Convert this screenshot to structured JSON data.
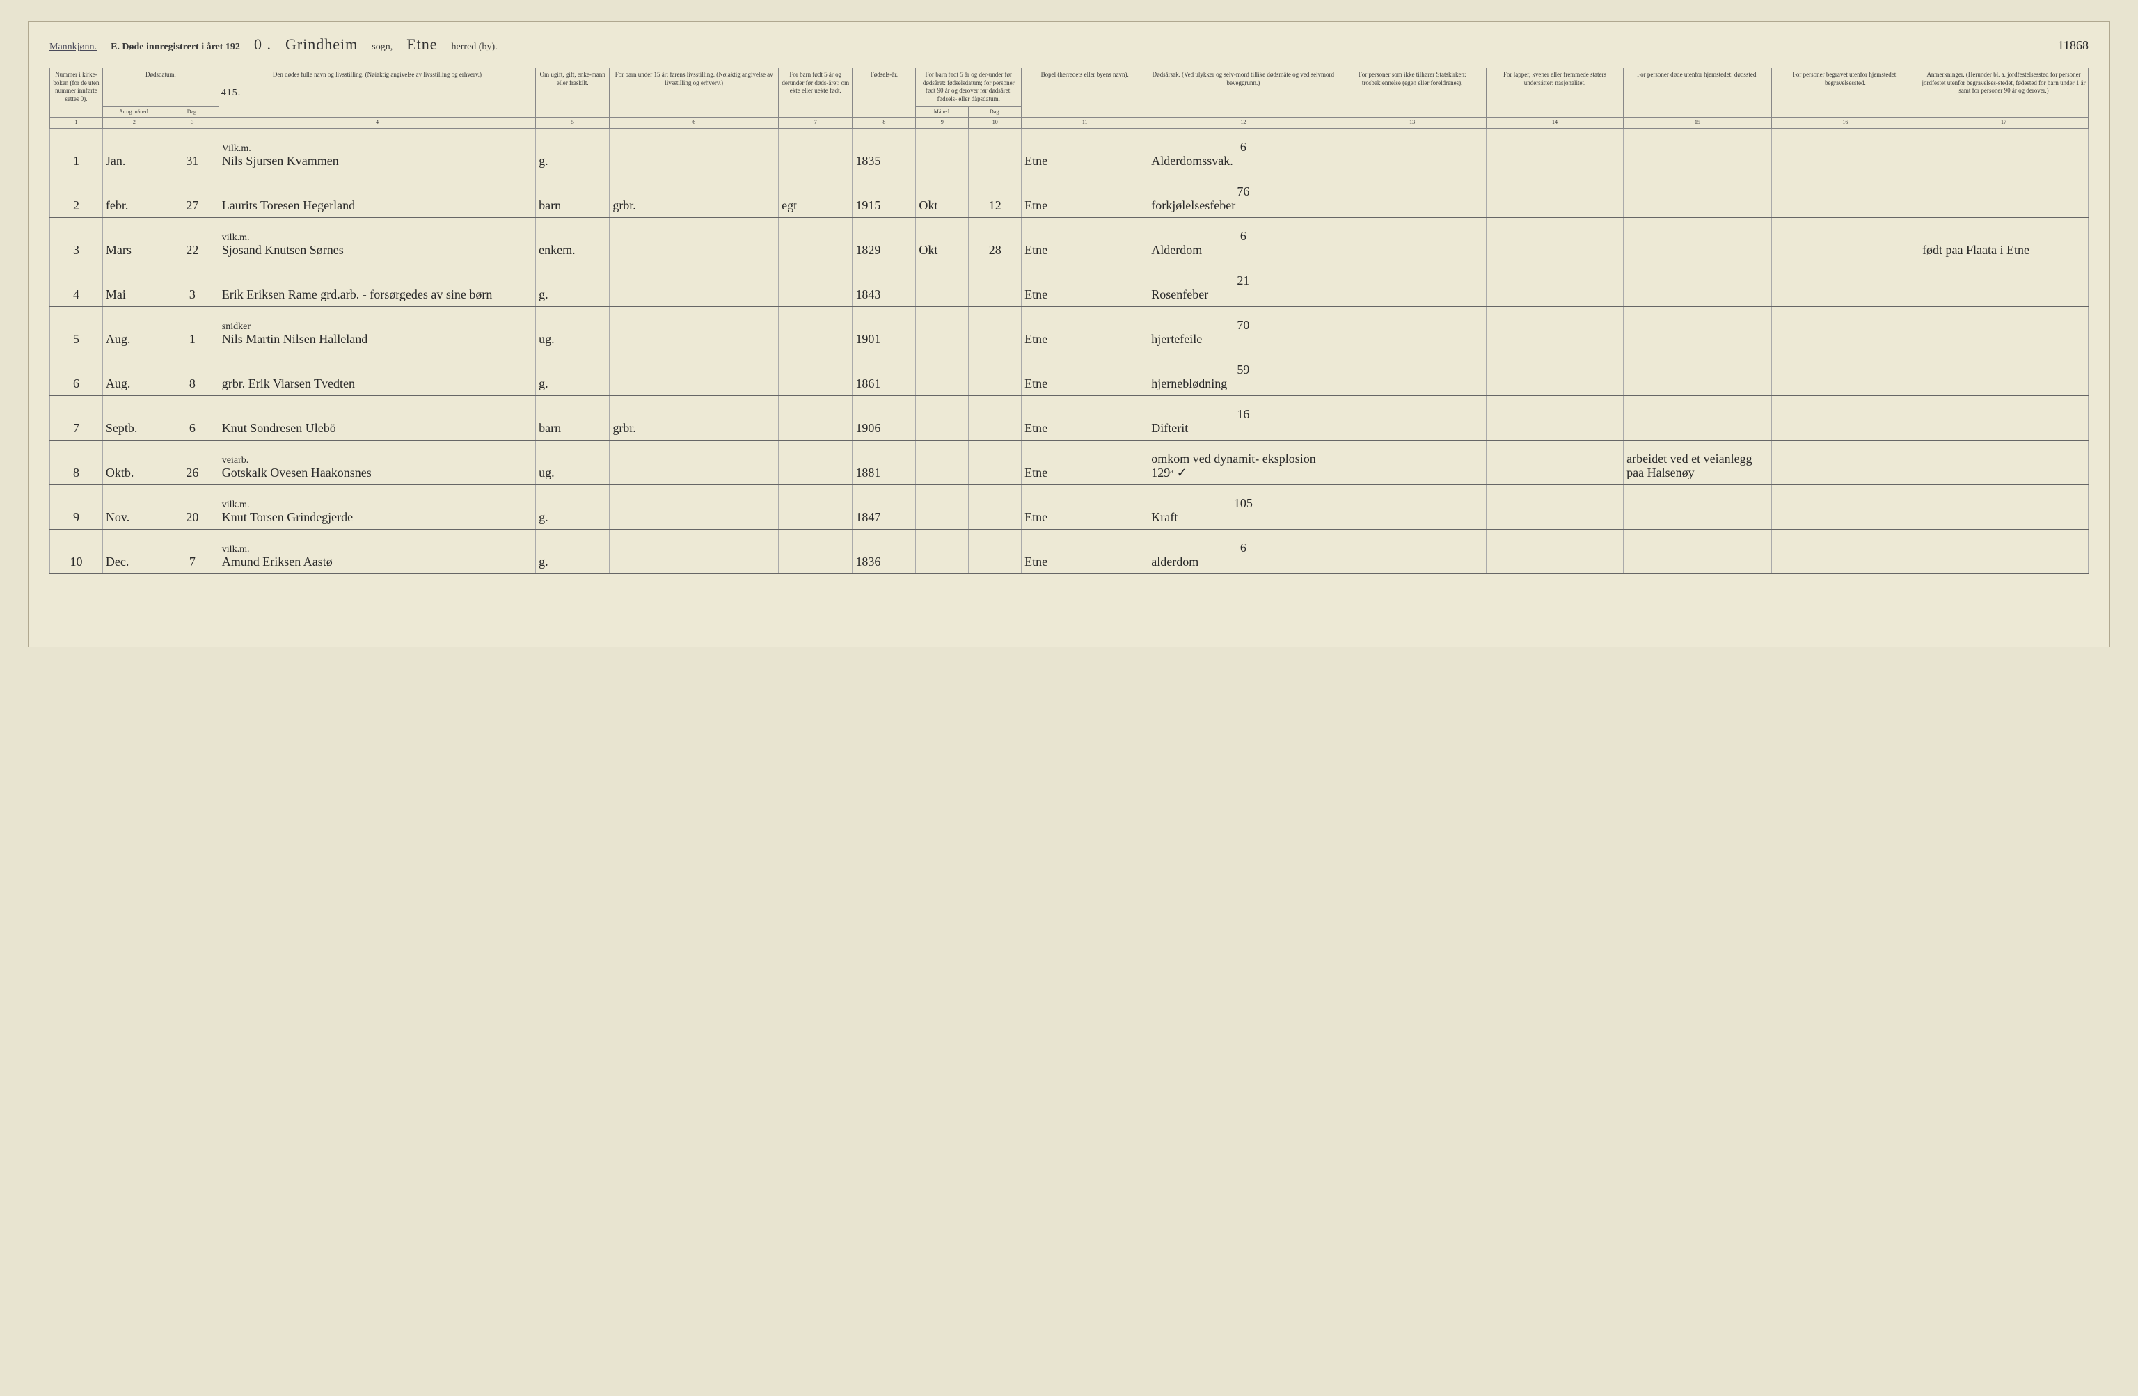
{
  "header": {
    "gender": "Mannkjønn.",
    "title_prefix": "E.  Døde innregistrert i året 192",
    "year_suffix": "0 .",
    "parish": "Grindheim",
    "sogn_label": "sogn,",
    "district": "Etne",
    "herred_label": "herred (by).",
    "page_number": "11868"
  },
  "form_number": "415.",
  "columns": {
    "c1": "Nummer i kirke-boken (for de uten nummer innførte settes 0).",
    "c2a": "Dødsdatum.",
    "c2_sub_ar": "År og måned.",
    "c2_sub_dag": "Dag.",
    "c4": "Den dødes fulle navn og livsstilling.\n(Nøiaktig angivelse av livsstilling og erhverv.)",
    "c5": "Om ugift, gift, enke-mann eller fraskilt.",
    "c6": "For barn under 15 år:\nfarens livsstilling.\n(Nøiaktig angivelse av livsstilling og erhverv.)",
    "c7": "For barn født 5 år og derunder før døds-året: om ekte eller uekte født.",
    "c8": "Fødsels-år.",
    "c9_10": "For barn født 5 år og der-under før dødsåret: fødselsdatum; for personer født 90 år og derover før dødsåret: fødsels- eller dåpsdatum.",
    "c9_sub": "Måned.",
    "c10_sub": "Dag.",
    "c11": "Bopel\n(herredets eller byens navn).",
    "c12": "Dødsårsak.\n(Ved ulykker og selv-mord tillike dødsmåte og ved selvmord beveggrunn.)",
    "c13": "For personer som ikke tilhører Statskirken:\ntrosbekjennelse (egen eller foreldrenes).",
    "c14": "For lapper, kvener eller fremmede staters undersåtter:\nnasjonalitet.",
    "c15": "For personer døde utenfor hjemstedet:\ndødssted.",
    "c16": "For personer begravet utenfor hjemstedet:\nbegravelsessted.",
    "c17": "Anmerkninger.\n(Herunder bl. a. jordfestelsessted for personer jordfestet utenfor begravelses-stedet, fødested for barn under 1 år samt for personer 90 år og derover.)"
  },
  "col_numbers": [
    "1",
    "2",
    "3",
    "4",
    "5",
    "6",
    "7",
    "8",
    "9",
    "10",
    "11",
    "12",
    "13",
    "14",
    "15",
    "16",
    "17"
  ],
  "rows": [
    {
      "n": "1",
      "month": "Jan.",
      "day": "31",
      "occ": "Vilk.m.",
      "name": "Nils Sjursen Kvammen",
      "status": "g.",
      "father": "",
      "ekte": "",
      "birth": "1835",
      "bm": "",
      "bd": "",
      "bopel": "Etne",
      "cause_num": "6",
      "cause": "Alderdomssvak.",
      "c13": "",
      "c14": "",
      "c15": "",
      "c16": "",
      "c17": ""
    },
    {
      "n": "2",
      "month": "febr.",
      "day": "27",
      "occ": "",
      "name": "Laurits Toresen Hegerland",
      "status": "barn",
      "father": "grbr.",
      "ekte": "egt",
      "birth": "1915",
      "bm": "Okt",
      "bd": "12",
      "bopel": "Etne",
      "cause_num": "76",
      "cause": "forkjølelsesfeber",
      "c13": "",
      "c14": "",
      "c15": "",
      "c16": "",
      "c17": ""
    },
    {
      "n": "3",
      "month": "Mars",
      "day": "22",
      "occ": "vilk.m.",
      "name": "Sjosand Knutsen Sørnes",
      "status": "enkem.",
      "father": "",
      "ekte": "",
      "birth": "1829",
      "bm": "Okt",
      "bd": "28",
      "bopel": "Etne",
      "cause_num": "6",
      "cause": "Alderdom",
      "c13": "",
      "c14": "",
      "c15": "",
      "c16": "",
      "c17": "født paa Flaata i Etne"
    },
    {
      "n": "4",
      "month": "Mai",
      "day": "3",
      "occ": "",
      "name": "Erik Eriksen Rame  grd.arb. - forsørgedes av sine børn",
      "status": "g.",
      "father": "",
      "ekte": "",
      "birth": "1843",
      "bm": "",
      "bd": "",
      "bopel": "Etne",
      "cause_num": "21",
      "cause": "Rosenfeber",
      "c13": "",
      "c14": "",
      "c15": "",
      "c16": "",
      "c17": ""
    },
    {
      "n": "5",
      "month": "Aug.",
      "day": "1",
      "occ": "snidker",
      "name": "Nils Martin Nilsen Halleland",
      "status": "ug.",
      "father": "",
      "ekte": "",
      "birth": "1901",
      "bm": "",
      "bd": "",
      "bopel": "Etne",
      "cause_num": "70",
      "cause": "hjertefeile",
      "c13": "",
      "c14": "",
      "c15": "",
      "c16": "",
      "c17": ""
    },
    {
      "n": "6",
      "month": "Aug.",
      "day": "8",
      "occ": "",
      "name": "grbr. Erik Viarsen Tvedten",
      "status": "g.",
      "father": "",
      "ekte": "",
      "birth": "1861",
      "bm": "",
      "bd": "",
      "bopel": "Etne",
      "cause_num": "59",
      "cause": "hjerneblødning",
      "c13": "",
      "c14": "",
      "c15": "",
      "c16": "",
      "c17": ""
    },
    {
      "n": "7",
      "month": "Septb.",
      "day": "6",
      "occ": "",
      "name": "Knut Sondresen Ulebö",
      "status": "barn",
      "father": "grbr.",
      "ekte": "",
      "birth": "1906",
      "bm": "",
      "bd": "",
      "bopel": "Etne",
      "cause_num": "16",
      "cause": "Difterit",
      "c13": "",
      "c14": "",
      "c15": "",
      "c16": "",
      "c17": ""
    },
    {
      "n": "8",
      "month": "Oktb.",
      "day": "26",
      "occ": "veiarb.",
      "name": "Gotskalk Ovesen Haakonsnes",
      "status": "ug.",
      "father": "",
      "ekte": "",
      "birth": "1881",
      "bm": "",
      "bd": "",
      "bopel": "Etne",
      "cause_num": "",
      "cause": "omkom ved dynamit- eksplosion  129ᵃ ✓",
      "c13": "",
      "c14": "",
      "c15": "arbeidet ved et veianlegg paa Halsenøy",
      "c16": "",
      "c17": ""
    },
    {
      "n": "9",
      "month": "Nov.",
      "day": "20",
      "occ": "vilk.m.",
      "name": "Knut Torsen Grindegjerde",
      "status": "g.",
      "father": "",
      "ekte": "",
      "birth": "1847",
      "bm": "",
      "bd": "",
      "bopel": "Etne",
      "cause_num": "105",
      "cause": "Kraft",
      "c13": "",
      "c14": "",
      "c15": "",
      "c16": "",
      "c17": ""
    },
    {
      "n": "10",
      "month": "Dec.",
      "day": "7",
      "occ": "vilk.m.",
      "name": "Amund Eriksen Aastø",
      "status": "g.",
      "father": "",
      "ekte": "",
      "birth": "1836",
      "bm": "",
      "bd": "",
      "bopel": "Etne",
      "cause_num": "6",
      "cause": "alderdom",
      "c13": "",
      "c14": "",
      "c15": "",
      "c16": "",
      "c17": ""
    }
  ],
  "colors": {
    "page_bg": "#ede9d5",
    "body_bg": "#e8e4d0",
    "rule": "#666",
    "ink": "#2a2a2a"
  }
}
